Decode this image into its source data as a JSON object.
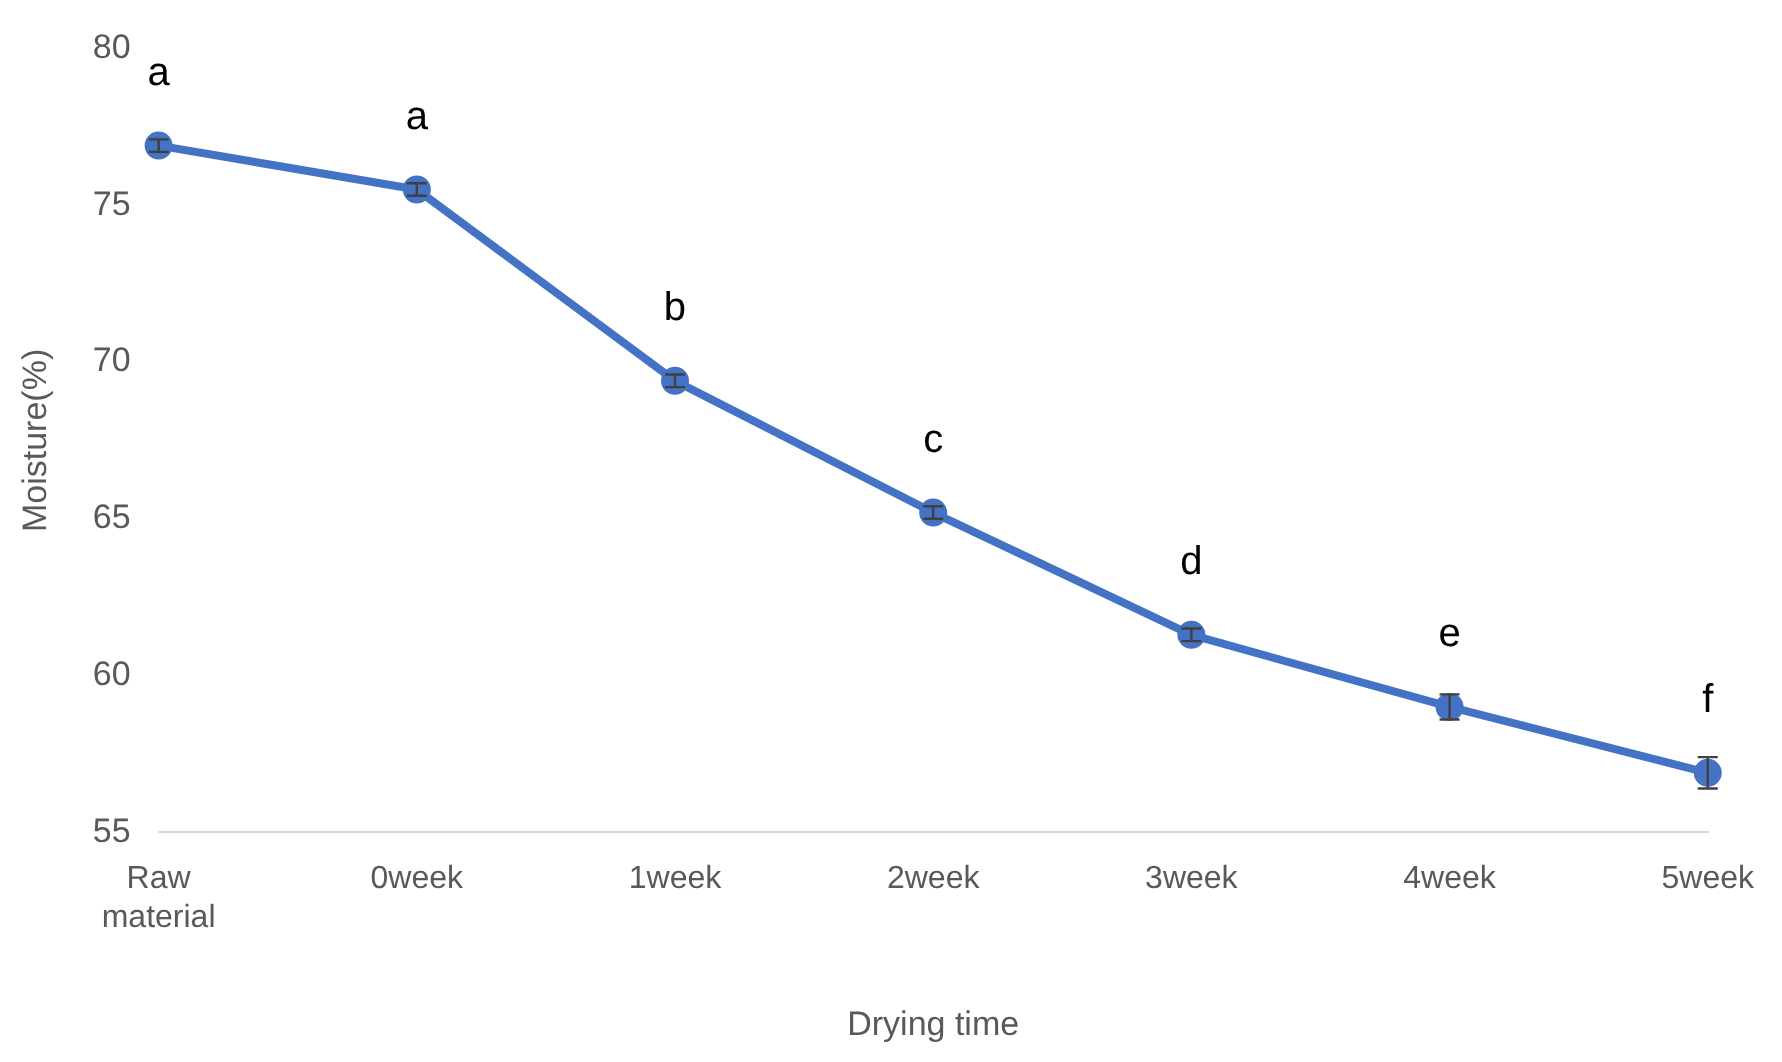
{
  "chart_data": {
    "type": "line",
    "xlabel": "Drying time",
    "ylabel": "Moisture(%)",
    "categories": [
      "Raw material",
      "0week",
      "1week",
      "2week",
      "3week",
      "4week",
      "5week"
    ],
    "series": [
      {
        "color": "#4472c4",
        "values": [
          76.9,
          75.5,
          69.4,
          65.2,
          61.3,
          59.0,
          56.9
        ],
        "errors": [
          0.2,
          0.2,
          0.2,
          0.2,
          0.2,
          0.4,
          0.5
        ]
      }
    ],
    "ylim": [
      55,
      80
    ],
    "yticks": [
      55,
      60,
      65,
      70,
      75,
      80
    ],
    "grid": false,
    "legend": false,
    "marker": "circle",
    "line_style": "solid",
    "annotations": [
      "a",
      "a",
      "b",
      "c",
      "d",
      "e",
      "f"
    ]
  }
}
